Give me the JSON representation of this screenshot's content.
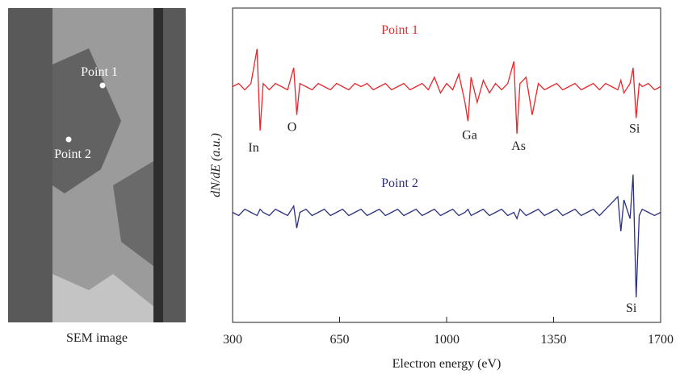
{
  "figure": {
    "caption": "SEM image",
    "points": [
      "Point 1",
      "Point 2"
    ]
  },
  "chart_data": {
    "type": "line",
    "x_label": "Electron energy (eV)",
    "y_label": "dN/dE (a.u.)",
    "xlim": [
      300,
      1700
    ],
    "xticks": [
      300,
      650,
      1000,
      1350,
      1700
    ],
    "ylim": [
      0,
      100
    ],
    "x": [
      300,
      320,
      340,
      360,
      380,
      390,
      400,
      420,
      440,
      460,
      480,
      500,
      510,
      520,
      540,
      560,
      580,
      600,
      620,
      640,
      660,
      680,
      700,
      720,
      740,
      760,
      780,
      800,
      820,
      840,
      860,
      880,
      900,
      920,
      940,
      960,
      980,
      1000,
      1020,
      1040,
      1060,
      1070,
      1080,
      1100,
      1120,
      1140,
      1160,
      1180,
      1200,
      1220,
      1230,
      1240,
      1260,
      1280,
      1300,
      1320,
      1340,
      1360,
      1380,
      1400,
      1420,
      1440,
      1460,
      1480,
      1500,
      1520,
      1540,
      1560,
      1570,
      1580,
      1600,
      1610,
      1620,
      1630,
      1640,
      1660,
      1680,
      1700
    ],
    "series": [
      {
        "name": "Point 1",
        "color": "#e8262b",
        "values": [
          75,
          76,
          74,
          76,
          87,
          61,
          76,
          74,
          76,
          75,
          74,
          81,
          66,
          76,
          75,
          74,
          76,
          75,
          74,
          76,
          75,
          74,
          76,
          75,
          76,
          74,
          75,
          76,
          74,
          75,
          76,
          74,
          75,
          76,
          74,
          78,
          73,
          76,
          74,
          79,
          70,
          64,
          78,
          70,
          77,
          73,
          76,
          74,
          76,
          83,
          60,
          76,
          78,
          66,
          76,
          74,
          75,
          76,
          74,
          75,
          76,
          74,
          75,
          76,
          74,
          76,
          75,
          74,
          77,
          73,
          76,
          81,
          65,
          76,
          75,
          76,
          74,
          75
        ],
        "annotations": [
          {
            "text": "In",
            "x": 390
          },
          {
            "text": "O",
            "x": 510
          },
          {
            "text": "Ga",
            "x": 1070
          },
          {
            "text": "As",
            "x": 1230
          },
          {
            "text": "Si",
            "x": 1620
          }
        ]
      },
      {
        "name": "Point 2",
        "color": "#2a2f7f",
        "values": [
          35,
          34,
          36,
          35,
          34,
          36,
          35,
          34,
          36,
          35,
          34,
          37,
          30,
          35,
          36,
          34,
          35,
          36,
          34,
          35,
          36,
          34,
          35,
          36,
          34,
          35,
          36,
          34,
          35,
          36,
          34,
          35,
          36,
          34,
          35,
          36,
          34,
          35,
          36,
          34,
          35,
          36,
          34,
          35,
          36,
          34,
          35,
          36,
          34,
          35,
          33,
          36,
          34,
          35,
          36,
          34,
          35,
          36,
          34,
          35,
          36,
          34,
          35,
          36,
          34,
          36,
          38,
          40,
          29,
          39,
          33,
          47,
          8,
          34,
          36,
          35,
          34,
          35
        ],
        "annotations": [
          {
            "text": "Si",
            "x": 1620
          }
        ]
      }
    ]
  }
}
